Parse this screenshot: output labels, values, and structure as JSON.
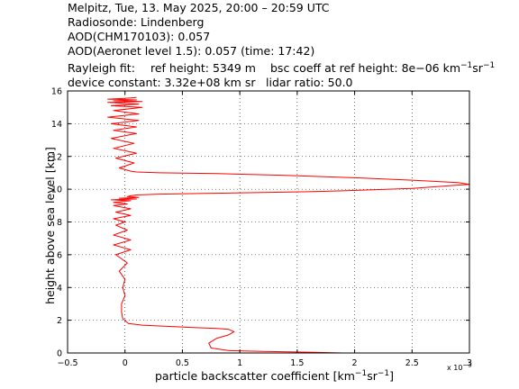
{
  "header": {
    "line1": "Melpitz, Tue, 13. May 2025, 20:00 – 20:59 UTC",
    "line2": "Radiosonde: Lindenberg",
    "line3": "AOD(CHM170103): 0.057",
    "line4": "AOD(Aeronet level 1.5): 0.057   (time: 17:42)",
    "rayleigh_label": "Rayleigh fit:",
    "ref_height": "ref height: 5349 m",
    "bsc_coeff_prefix": "bsc coeff at ref height: 8e−06 km",
    "bsc_sup1": "−1",
    "bsc_mid": "sr",
    "bsc_sup2": "−1",
    "device_constant": "device constant: 3.32e+08 km sr",
    "lidar_ratio": "lidar ratio: 50.0"
  },
  "axes": {
    "xlabel_prefix": "particle backscatter coefficient [km",
    "xlabel_sup1": "−1",
    "xlabel_mid": "sr",
    "xlabel_sup2": "−1",
    "xlabel_suffix": "]",
    "ylabel": "height above sea level [km]",
    "x_multiplier_base": "x 10",
    "x_multiplier_exp": "−3"
  },
  "colors": {
    "profile": "#ff0000",
    "grid": "#000000"
  },
  "chart_data": {
    "type": "line",
    "xlim": [
      -0.5,
      3
    ],
    "ylim": [
      0,
      16
    ],
    "x_ticks": [
      -0.5,
      0,
      0.5,
      1,
      1.5,
      2,
      2.5,
      3
    ],
    "x_tick_labels": [
      "−0.5",
      "0",
      "0.5",
      "1",
      "1.5",
      "2",
      "2.5",
      "3"
    ],
    "y_ticks": [
      0,
      2,
      4,
      6,
      8,
      10,
      12,
      14,
      16
    ],
    "y_tick_labels": [
      "0",
      "2",
      "4",
      "6",
      "8",
      "10",
      "12",
      "14",
      "16"
    ],
    "grid": true,
    "series": [
      {
        "x": [
          1.9,
          1.6,
          1.2,
          0.9,
          0.75,
          0.73,
          0.8,
          0.9,
          0.95,
          0.9,
          0.8,
          0.6,
          0.45,
          0.3,
          0.15,
          0.03,
          -0.02,
          -0.03,
          -0.03,
          0.0,
          -0.02,
          0.0,
          -0.05,
          0.02,
          -0.08,
          0.05,
          -0.1,
          0.05,
          -0.1,
          0.02,
          -0.08,
          0.0,
          -0.1,
          0.05,
          -0.08,
          0.05,
          -0.1,
          0.02,
          -0.1,
          0.05,
          -0.12,
          0.1,
          -0.05,
          0.12,
          0.02,
          0.05,
          0.1,
          0.3,
          0.7,
          1.2,
          1.6,
          1.9,
          2.1,
          2.3,
          2.5,
          2.8,
          3.0,
          2.9,
          2.5,
          2.0,
          1.4,
          0.8,
          0.3,
          0.1,
          0.05,
          -0.05,
          0.08,
          -0.08,
          0.1,
          -0.1,
          0.08,
          -0.12,
          0.1,
          -0.1,
          0.1,
          -0.12,
          0.12,
          -0.15,
          0.12,
          -0.1,
          0.15,
          -0.12,
          0.12,
          -0.15,
          0.15,
          -0.1,
          0.1,
          -0.15,
          0.0,
          0.1
        ],
        "y": [
          0.0,
          0.05,
          0.1,
          0.15,
          0.3,
          0.6,
          0.9,
          1.1,
          1.3,
          1.45,
          1.5,
          1.55,
          1.6,
          1.65,
          1.7,
          1.8,
          2.1,
          2.5,
          3.0,
          3.5,
          4.0,
          4.5,
          5.0,
          5.5,
          6.0,
          6.3,
          6.6,
          6.9,
          7.2,
          7.5,
          7.8,
          8.0,
          8.2,
          8.4,
          8.6,
          8.8,
          9.0,
          9.1,
          9.2,
          9.3,
          9.35,
          9.4,
          9.45,
          9.5,
          9.55,
          9.6,
          9.65,
          9.7,
          9.75,
          9.8,
          9.85,
          9.9,
          9.95,
          10.0,
          10.05,
          10.2,
          10.3,
          10.4,
          10.55,
          10.7,
          10.85,
          10.95,
          11.0,
          11.05,
          11.1,
          11.3,
          11.6,
          11.9,
          12.2,
          12.5,
          12.8,
          13.1,
          13.4,
          13.6,
          13.8,
          14.0,
          14.2,
          14.4,
          14.6,
          14.8,
          15.0,
          15.1,
          15.2,
          15.3,
          15.35,
          15.4,
          15.45,
          15.5,
          15.55,
          15.6
        ]
      }
    ]
  }
}
